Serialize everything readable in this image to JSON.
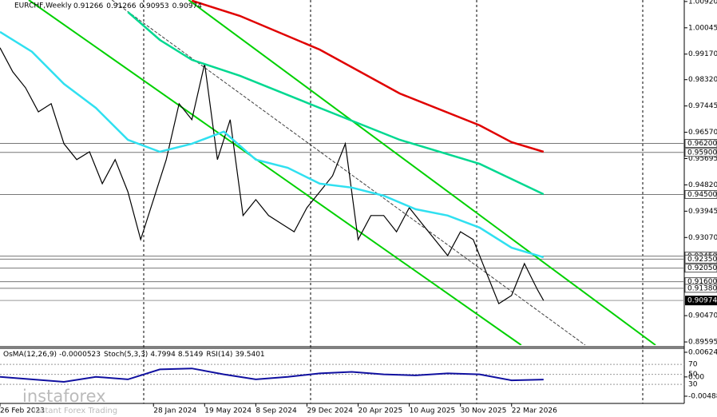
{
  "chart_data": {
    "type": "line",
    "title": "EURCHF,Weekly",
    "ohlc": [
      0.91266,
      0.91266,
      0.90953,
      0.90974
    ],
    "xlim": [
      0,
      214
    ],
    "ylim": [
      0.8949,
      1.0097
    ],
    "xticks": [
      {
        "value": 0,
        "label": "26 Feb 2023"
      },
      {
        "value": 48,
        "label": "28 Jan 2024"
      },
      {
        "value": 64,
        "label": "19 May 2024"
      },
      {
        "value": 80,
        "label": "8 Sep 2024"
      },
      {
        "value": 96,
        "label": "29 Dec 2024"
      },
      {
        "value": 112,
        "label": "20 Apr 2025"
      },
      {
        "value": 128,
        "label": "10 Aug 2025"
      },
      {
        "value": 144,
        "label": "30 Nov 2025"
      },
      {
        "value": 160,
        "label": "22 Mar 2026"
      }
    ],
    "yticks": [
      {
        "value": 1.0092,
        "label": "1.00920"
      },
      1.00045,
      {
        "value": 0.9917,
        "label": "0.99170"
      },
      {
        "value": 0.9832,
        "label": "0.98320"
      },
      0.97445,
      {
        "value": 0.9657,
        "label": "0.96570"
      },
      0.95695,
      {
        "value": 0.9482,
        "label": "0.94820"
      },
      0.93945,
      {
        "value": 0.9307,
        "label": "0.93070"
      },
      {
        "value": 0.9047,
        "label": "0.90470"
      },
      0.89595
    ],
    "series": [
      {
        "color": "#000000",
        "x": [
          0,
          4,
          8,
          12,
          16,
          20,
          24,
          28,
          32,
          36,
          40,
          44,
          48,
          52,
          56,
          60,
          64,
          68,
          72,
          76,
          80,
          84,
          88,
          92,
          96,
          100,
          104,
          108,
          112,
          116,
          120,
          124,
          128,
          132,
          136,
          140,
          144,
          148,
          152,
          156,
          160,
          164,
          168,
          170
        ],
        "values": [
          0.9938,
          0.9858,
          0.9805,
          0.9725,
          0.9752,
          0.9619,
          0.9566,
          0.9592,
          0.9486,
          0.9566,
          0.9459,
          0.93,
          0.9433,
          0.9566,
          0.9752,
          0.9699,
          0.9885,
          0.9566,
          0.9699,
          0.938,
          0.9433,
          0.938,
          0.9353,
          0.9326,
          0.9406,
          0.9459,
          0.9512,
          0.9619,
          0.93,
          0.938,
          0.938,
          0.9326,
          0.9406,
          0.9353,
          0.93,
          0.9247,
          0.9326,
          0.93,
          0.9193,
          0.9087,
          0.9114,
          0.922,
          0.9135,
          0.90974
        ]
      },
      {
        "color": "#e00000",
        "x": [
          60,
          75,
          100,
          125,
          150,
          160,
          170
        ],
        "values": [
          1.0095,
          1.0044,
          0.9932,
          0.9786,
          0.968,
          0.9624,
          0.9592
        ]
      },
      {
        "color": "#00d890",
        "x": [
          40,
          50,
          60,
          75,
          100,
          125,
          150,
          170
        ],
        "values": [
          1.0057,
          0.9964,
          0.9898,
          0.9845,
          0.9738,
          0.9632,
          0.9552,
          0.9451
        ]
      },
      {
        "color": "#30e0f0",
        "x": [
          0,
          10,
          20,
          30,
          40,
          50,
          60,
          70,
          80,
          90,
          100,
          110,
          120,
          130,
          140,
          150,
          160,
          170
        ],
        "values": [
          0.9991,
          0.9925,
          0.9818,
          0.9738,
          0.9632,
          0.9592,
          0.9619,
          0.9659,
          0.9566,
          0.9539,
          0.9486,
          0.9473,
          0.9446,
          0.9401,
          0.938,
          0.934,
          0.9273,
          0.9241
        ]
      }
    ],
    "trendlines": [
      {
        "color": "#00d000",
        "x": [
          9,
          163
        ],
        "values": [
          1.0097,
          0.8949
        ]
      },
      {
        "color": "#00d000",
        "x": [
          59,
          205
        ],
        "values": [
          1.0097,
          0.8949
        ]
      },
      {
        "color": "#404040",
        "x": [
          35,
          183
        ],
        "values": [
          1.0097,
          0.8949
        ]
      }
    ],
    "levels": [
      {
        "value": 0.962,
        "label": "0.96200"
      },
      {
        "value": 0.959,
        "label": "0.95900"
      },
      {
        "value": 0.945,
        "label": "0.94500"
      },
      {
        "value": 0.9245,
        "label": "0.92450"
      },
      {
        "value": 0.9235,
        "label": "0.92350"
      },
      {
        "value": 0.9205,
        "label": "0.92050"
      },
      {
        "value": 0.916,
        "label": "0.91600"
      },
      {
        "value": 0.9138,
        "label": "0.91380"
      }
    ],
    "current": {
      "value": 0.90974,
      "label": "0.90974"
    },
    "indicator": {
      "osma_name": "OsMA(12,26,9)",
      "osma_value": -5.23e-05,
      "stoch_name": "Stoch(5,3,3)",
      "stoch_values": [
        4.7994,
        8.5149
      ],
      "rsi_name": "RSI(14)",
      "rsi_value": 39.5401,
      "osma_ylim": [
        -0.00565,
        0.00695
      ],
      "osma_ticks": [
        0.006246,
        {
          "value": 0,
          "label": "0.00"
        },
        -0.004886
      ],
      "rsi_ylim": [
        0,
        100
      ],
      "rsi_ticks": [
        70,
        50,
        30
      ],
      "rsi": {
        "color": "#1010a0",
        "x": [
          0,
          10,
          20,
          30,
          40,
          50,
          60,
          70,
          80,
          90,
          100,
          110,
          120,
          130,
          140,
          150,
          160,
          170
        ],
        "values": [
          45,
          40,
          35,
          45,
          40,
          60,
          62,
          50,
          40,
          45,
          52,
          55,
          50,
          48,
          52,
          50,
          38,
          39.5401
        ]
      }
    },
    "watermark": {
      "brand": "instaforex",
      "slogan": "Instant Forex Trading"
    }
  }
}
